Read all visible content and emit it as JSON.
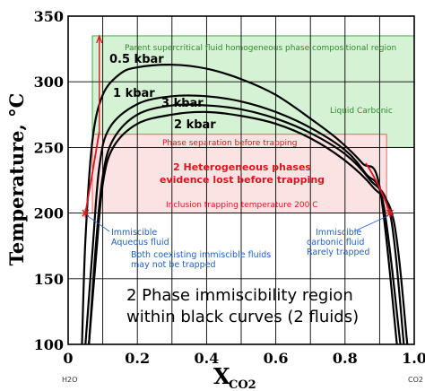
{
  "chart_data": {
    "type": "line",
    "ylabel": "Temperature, °C",
    "xlabel_main": "X",
    "xlabel_sub": "CO2",
    "xlim": [
      0,
      1.0
    ],
    "ylim": [
      100,
      350
    ],
    "x_ticks": [
      "0",
      "0.2",
      "0.4",
      "0.6",
      "0.8",
      "1.0"
    ],
    "y_ticks": [
      "350",
      "300",
      "250",
      "200",
      "150",
      "100"
    ],
    "x_end_labels": {
      "left": "H2O",
      "right": "CO2"
    },
    "grid": true,
    "series": [
      {
        "name": "0.5 kbar",
        "x": [
          0.04,
          0.05,
          0.07,
          0.1,
          0.15,
          0.2,
          0.3,
          0.4,
          0.5,
          0.6,
          0.7,
          0.78,
          0.85,
          0.9,
          0.95
        ],
        "y": [
          100,
          180,
          255,
          290,
          306,
          311,
          313,
          310,
          302,
          290,
          272,
          256,
          238,
          220,
          100
        ]
      },
      {
        "name": "1 kbar",
        "x": [
          0.05,
          0.07,
          0.09,
          0.12,
          0.2,
          0.3,
          0.4,
          0.5,
          0.6,
          0.7,
          0.8,
          0.86,
          0.91,
          0.96
        ],
        "y": [
          100,
          170,
          235,
          265,
          283,
          289,
          289,
          285,
          277,
          265,
          248,
          230,
          208,
          100
        ]
      },
      {
        "name": "3 kbar",
        "x": [
          0.06,
          0.08,
          0.1,
          0.13,
          0.2,
          0.3,
          0.4,
          0.5,
          0.6,
          0.7,
          0.8,
          0.87,
          0.93,
          0.97
        ],
        "y": [
          100,
          175,
          228,
          256,
          275,
          282,
          282,
          279,
          272,
          261,
          245,
          226,
          200,
          100
        ]
      },
      {
        "name": "2 kbar",
        "x": [
          0.06,
          0.08,
          0.1,
          0.13,
          0.2,
          0.3,
          0.4,
          0.5,
          0.6,
          0.7,
          0.8,
          0.88,
          0.94,
          0.98
        ],
        "y": [
          100,
          165,
          222,
          250,
          268,
          275,
          277,
          274,
          268,
          257,
          240,
          220,
          195,
          100
        ]
      }
    ],
    "points": [
      {
        "x": 0.05,
        "y": 200
      },
      {
        "x": 0.93,
        "y": 200
      }
    ],
    "regions": {
      "supercritical": {
        "x": [
          0.07,
          1.0
        ],
        "y": [
          250,
          335
        ],
        "color": "#d6f2d4",
        "border": "#48a848"
      },
      "heterogeneous": {
        "x": [
          0.07,
          0.92
        ],
        "y": [
          200,
          260
        ],
        "color": "#fbe3e3",
        "border": "#e84040"
      }
    },
    "annotations": {
      "supercritical_label": "Parent supercritical fluid homogeneous phase  compositional region",
      "liquid_carbonic": "Liquid Carbonic",
      "phase_separation": "Phase separation before trapping",
      "heterogeneous_line1": "2 Heterogeneous phases",
      "heterogeneous_line2": "evidence lost before trapping",
      "inclusion_trapping": "Inclusion trapping temperature 200 C",
      "immiscible_aqueous_line1": "Immiscible",
      "immiscible_aqueous_line2": "Aqueous fluid",
      "immiscible_carbonic_line1": "Immiscible",
      "immiscible_carbonic_line2": "carbonic fluid",
      "immiscible_carbonic_line3": "Rarely trapped",
      "coexisting_line1": "Both coexisting immiscible fluids",
      "coexisting_line2": "may not be trapped",
      "region_line1": "2 Phase immiscibility region",
      "region_line2": "within black curves  (2 fluids)"
    },
    "colors": {
      "curve": "#000000",
      "red": "#e0141e",
      "green": "#2f8a2f",
      "blue": "#1f5fc8"
    }
  }
}
